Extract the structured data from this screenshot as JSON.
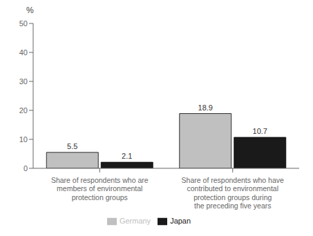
{
  "chart_data": {
    "type": "bar",
    "ylabel": "%",
    "categories": [
      "Share of respondents who are\nmembers of environmental\nprotection groups",
      "Share of respondents who have\ncontributed to environmental\nprotection groups during\nthe preceding five years"
    ],
    "series": [
      {
        "name": "Germany",
        "color": "#c0c0c0",
        "values": [
          5.5,
          18.9
        ]
      },
      {
        "name": "Japan",
        "color": "#1a1a1a",
        "values": [
          2.1,
          10.7
        ]
      }
    ],
    "ylim": [
      0,
      50
    ],
    "yticks": [
      0,
      10,
      20,
      30,
      40,
      50
    ],
    "grid": false,
    "legend": "bottom",
    "data_labels": true
  }
}
